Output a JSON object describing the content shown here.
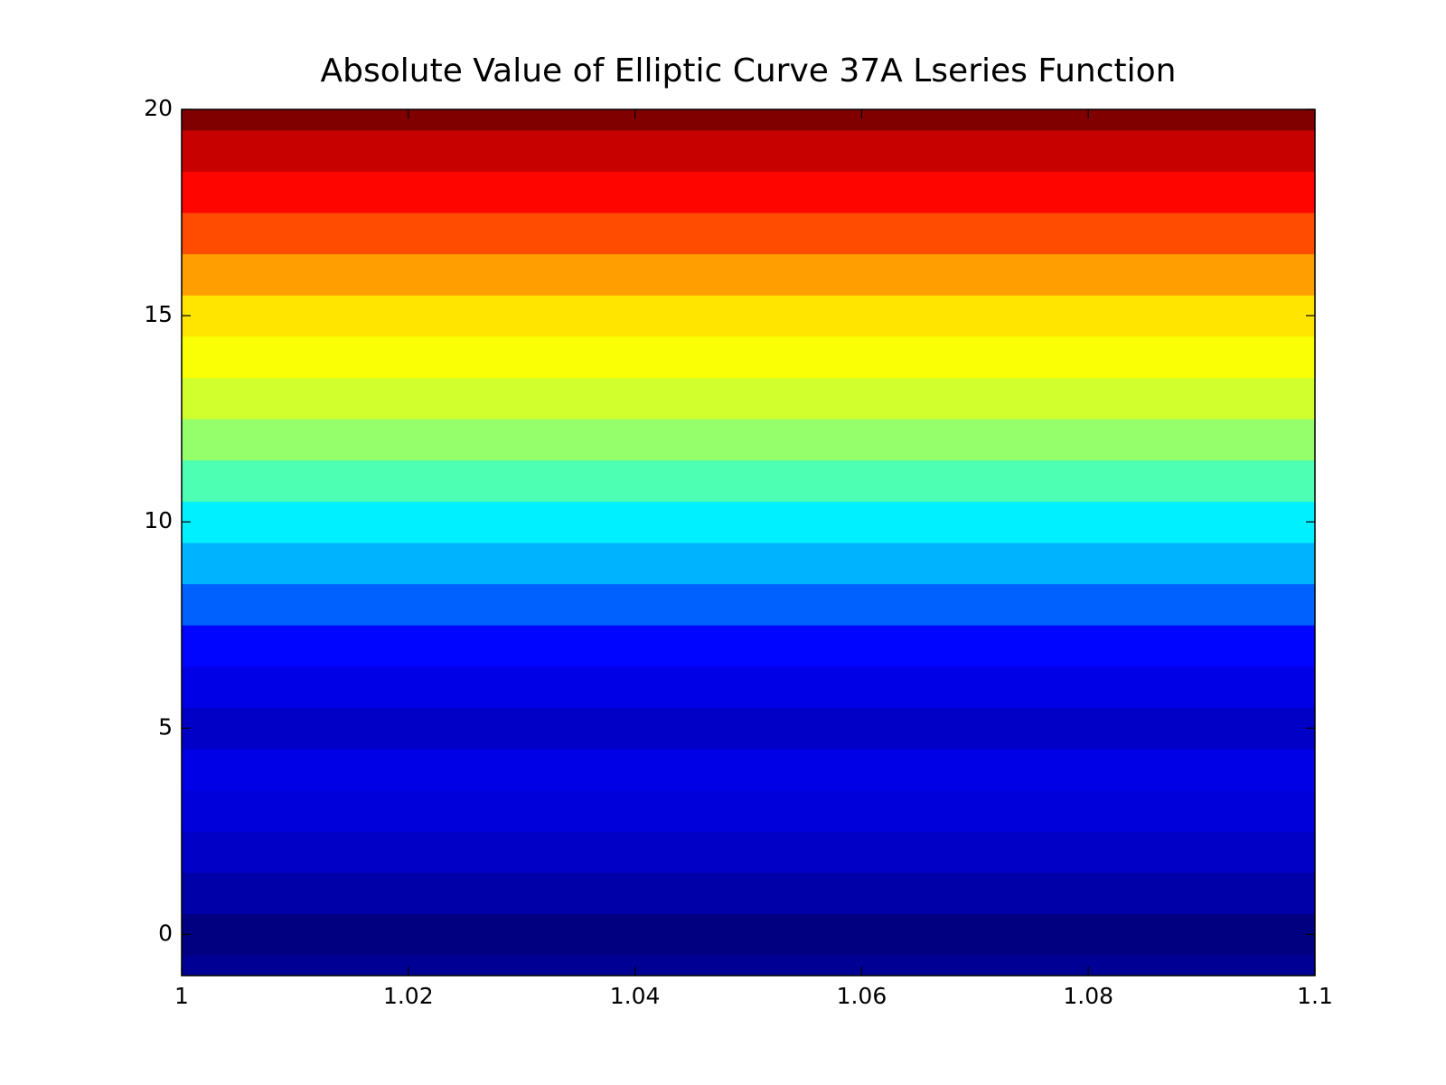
{
  "chart_data": {
    "type": "heatmap",
    "title": "Absolute Value of Elliptic Curve 37A Lseries Function",
    "colormap": "jet",
    "y": [
      -1,
      0,
      1,
      2,
      3,
      4,
      5,
      6,
      7,
      8,
      9,
      10,
      11,
      12,
      13,
      14,
      15,
      16,
      17,
      18,
      19,
      20
    ],
    "values": [
      0.02,
      0.0,
      0.04,
      0.07,
      0.09,
      0.1,
      0.07,
      0.1,
      0.13,
      0.22,
      0.3,
      0.36,
      0.45,
      0.52,
      0.58,
      0.62,
      0.65,
      0.72,
      0.8,
      0.87,
      0.93,
      1.0
    ],
    "xlim": [
      1,
      1.1
    ],
    "xticks": [
      1,
      1.02,
      1.04,
      1.06,
      1.08,
      1.1
    ],
    "ylim": [
      -1,
      20
    ],
    "yticks": [
      0,
      5,
      10,
      15,
      20
    ]
  }
}
